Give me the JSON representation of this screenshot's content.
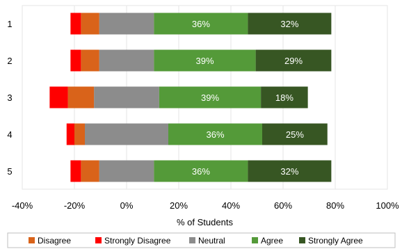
{
  "chart_data": {
    "type": "bar",
    "orientation": "horizontal",
    "stacked": true,
    "diverging": true,
    "categories": [
      "1",
      "2",
      "3",
      "4",
      "5"
    ],
    "series": [
      {
        "name": "Strongly Disagree",
        "color": "#ff0000",
        "values": [
          4,
          4,
          7,
          3,
          4
        ]
      },
      {
        "name": "Disagree",
        "color": "#d9631a",
        "values": [
          7,
          7,
          10,
          4,
          7
        ]
      },
      {
        "name": "Neutral",
        "color": "#8c8c8c",
        "values": [
          21,
          21,
          25,
          32,
          21
        ]
      },
      {
        "name": "Agree",
        "color": "#549a39",
        "values": [
          36,
          39,
          39,
          36,
          36
        ]
      },
      {
        "name": "Strongly Agree",
        "color": "#375623",
        "values": [
          32,
          29,
          18,
          25,
          32
        ]
      }
    ],
    "legend_order": [
      "Disagree",
      "Strongly Disagree",
      "Neutral",
      "Agree",
      "Strongly Agree"
    ],
    "xlabel": "% of Students",
    "ylabel": "",
    "xlim": [
      -40,
      100
    ],
    "xticks": [
      -40,
      -20,
      0,
      20,
      40,
      60,
      80,
      100
    ],
    "xtick_labels": [
      "-40%",
      "-20%",
      "0%",
      "20%",
      "40%",
      "60%",
      "80%",
      "100%"
    ],
    "data_labels": {
      "Agree": [
        "36%",
        "39%",
        "39%",
        "36%",
        "36%"
      ],
      "Strongly Agree": [
        "32%",
        "29%",
        "18%",
        "25%",
        "32%"
      ]
    },
    "grid": "vertical",
    "legend_position": "bottom"
  }
}
